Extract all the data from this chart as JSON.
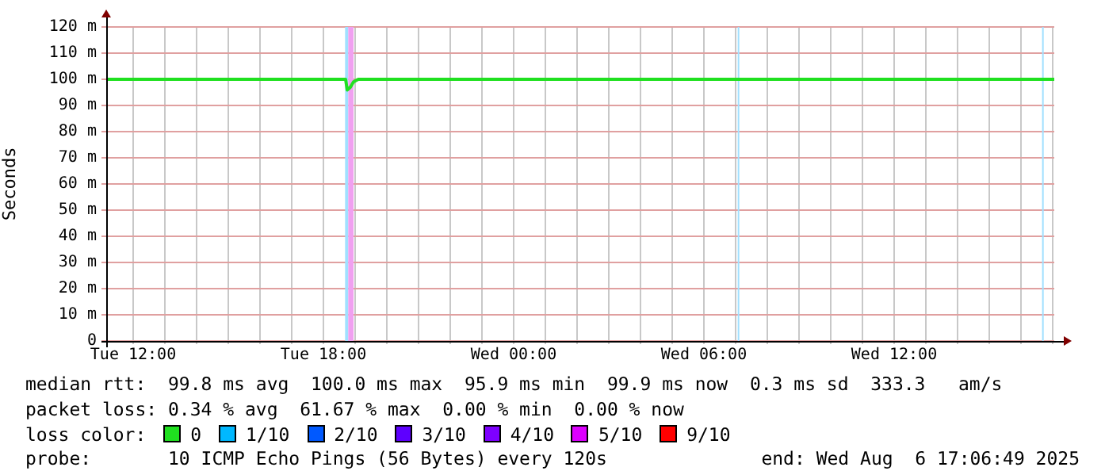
{
  "chart_data": {
    "type": "line",
    "ylabel": "Seconds",
    "legend_title": "loss color:",
    "legend": "bottom",
    "grid": true,
    "marker": "none",
    "line_style": "solid",
    "xlim": [
      "2025-08-05T11:09",
      "2025-08-06T17:03"
    ],
    "xticks": [
      {
        "value": "2025-08-05T12:00",
        "label": "Tue 12:00"
      },
      {
        "value": "2025-08-05T13:00",
        "label": null
      },
      {
        "value": "2025-08-05T14:00",
        "label": null
      },
      {
        "value": "2025-08-05T15:00",
        "label": null
      },
      {
        "value": "2025-08-05T16:00",
        "label": null
      },
      {
        "value": "2025-08-05T17:00",
        "label": null
      },
      {
        "value": "2025-08-05T18:00",
        "label": "Tue 18:00"
      },
      {
        "value": "2025-08-05T19:00",
        "label": null
      },
      {
        "value": "2025-08-05T20:00",
        "label": null
      },
      {
        "value": "2025-08-05T21:00",
        "label": null
      },
      {
        "value": "2025-08-05T22:00",
        "label": null
      },
      {
        "value": "2025-08-05T23:00",
        "label": null
      },
      {
        "value": "2025-08-06T00:00",
        "label": "Wed 00:00"
      },
      {
        "value": "2025-08-06T01:00",
        "label": null
      },
      {
        "value": "2025-08-06T02:00",
        "label": null
      },
      {
        "value": "2025-08-06T03:00",
        "label": null
      },
      {
        "value": "2025-08-06T04:00",
        "label": null
      },
      {
        "value": "2025-08-06T05:00",
        "label": null
      },
      {
        "value": "2025-08-06T06:00",
        "label": "Wed 06:00"
      },
      {
        "value": "2025-08-06T07:00",
        "label": null
      },
      {
        "value": "2025-08-06T08:00",
        "label": null
      },
      {
        "value": "2025-08-06T09:00",
        "label": null
      },
      {
        "value": "2025-08-06T10:00",
        "label": null
      },
      {
        "value": "2025-08-06T11:00",
        "label": null
      },
      {
        "value": "2025-08-06T12:00",
        "label": "Wed 12:00"
      },
      {
        "value": "2025-08-06T13:00",
        "label": null
      },
      {
        "value": "2025-08-06T14:00",
        "label": null
      },
      {
        "value": "2025-08-06T15:00",
        "label": null
      },
      {
        "value": "2025-08-06T16:00",
        "label": null
      },
      {
        "value": "2025-08-06T17:00",
        "label": null
      }
    ],
    "ylim": [
      0,
      120
    ],
    "yticks": [
      {
        "value": 0,
        "label": "0"
      },
      {
        "value": 10,
        "label": "10 m"
      },
      {
        "value": 20,
        "label": "20 m"
      },
      {
        "value": 30,
        "label": "30 m"
      },
      {
        "value": 40,
        "label": "40 m"
      },
      {
        "value": 50,
        "label": "50 m"
      },
      {
        "value": 60,
        "label": "60 m"
      },
      {
        "value": 70,
        "label": "70 m"
      },
      {
        "value": 80,
        "label": "80 m"
      },
      {
        "value": 90,
        "label": "90 m"
      },
      {
        "value": 100,
        "label": "100 m"
      },
      {
        "value": 110,
        "label": "110 m"
      },
      {
        "value": 120,
        "label": "120 m"
      }
    ],
    "series": [
      {
        "name": "0",
        "color": "#20e020",
        "x": [
          "2025-08-05T11:09",
          "2025-08-05T12:00",
          "2025-08-05T14:00",
          "2025-08-05T16:00",
          "2025-08-05T18:00",
          "2025-08-05T18:42",
          "2025-08-05T18:45",
          "2025-08-05T18:51",
          "2025-08-05T18:57",
          "2025-08-05T19:06",
          "2025-08-05T20:00",
          "2025-08-05T22:00",
          "2025-08-06T00:00",
          "2025-08-06T02:00",
          "2025-08-06T04:00",
          "2025-08-06T06:00",
          "2025-08-06T08:00",
          "2025-08-06T10:00",
          "2025-08-06T12:00",
          "2025-08-06T14:00",
          "2025-08-06T16:00",
          "2025-08-06T17:03"
        ],
        "values": [
          100,
          100,
          100,
          100,
          100,
          100,
          95.9,
          97,
          99,
          100,
          100,
          100,
          100,
          100,
          100,
          100,
          100,
          100,
          100,
          100,
          100,
          100
        ]
      },
      {
        "name": "1/10",
        "color": "#00b8ff"
      },
      {
        "name": "2/10",
        "color": "#0059ff"
      },
      {
        "name": "3/10",
        "color": "#5e00ff"
      },
      {
        "name": "4/10",
        "color": "#7e00ff"
      },
      {
        "name": "5/10",
        "color": "#dd00ff"
      },
      {
        "name": "9/10",
        "color": "#ff0000"
      }
    ],
    "bands": [
      {
        "axis": "x",
        "from": "2025-08-05T18:41",
        "to": "2025-08-05T18:47",
        "color": "#a0e0ff"
      },
      {
        "axis": "x",
        "from": "2025-08-05T18:47",
        "to": "2025-08-05T18:57",
        "color": "#f0a0f0"
      },
      {
        "axis": "x",
        "from": "2025-08-06T07:04",
        "to": "2025-08-06T07:07",
        "color": "#a0e0ff"
      },
      {
        "axis": "x",
        "from": "2025-08-06T16:40",
        "to": "2025-08-06T16:43",
        "color": "#a0e0ff"
      }
    ],
    "annotations": [
      "median rtt:  99.8 ms avg  100.0 ms max  95.9 ms min  99.9 ms now  0.3 ms sd  333.3   am/s",
      "packet loss: 0.34 % avg  61.67 % max  0.00 % min  0.00 % now",
      "probe:       10 ICMP Echo Pings (56 Bytes) every 120s",
      "end: Wed Aug  6 17:06:49 2025"
    ]
  }
}
